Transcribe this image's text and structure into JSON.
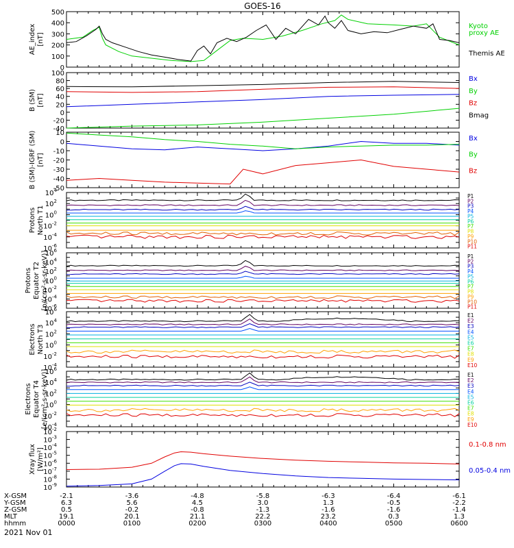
{
  "title": "GOES-16",
  "date_label": "2021 Nov 01",
  "colors": {
    "black": "#000000",
    "red": "#e00000",
    "green": "#00d000",
    "blue": "#0000e0",
    "p_levels": [
      "#000000",
      "#600060",
      "#0000c0",
      "#0050ff",
      "#00b0e0",
      "#00d0a0",
      "#40e000",
      "#e0e000",
      "#ffa000",
      "#e06000",
      "#e00000"
    ],
    "e_levels": [
      "#000000",
      "#600060",
      "#0000c0",
      "#0050ff",
      "#00b0e0",
      "#00d0a0",
      "#40e000",
      "#e0e000",
      "#ffa000",
      "#e00000"
    ]
  },
  "ephemeris": {
    "row_labels": [
      "X-GSM",
      "Y-GSM",
      "Z-GSM",
      "MLT",
      "hhmm"
    ],
    "columns": [
      [
        "-2.1",
        "6.3",
        "0.5",
        "19.1",
        "0000"
      ],
      [
        "-3.6",
        "5.6",
        "-0.2",
        "20.1",
        "0100"
      ],
      [
        "-4.8",
        "4.5",
        "-0.8",
        "21.1",
        "0200"
      ],
      [
        "-5.8",
        "3.0",
        "-1.3",
        "22.2",
        "0300"
      ],
      [
        "-6.3",
        "1.3",
        "-1.6",
        "23.2",
        "0400"
      ],
      [
        "-6.4",
        "-0.5",
        "-1.6",
        "0.3",
        "0500"
      ],
      [
        "-6.1",
        "-2.2",
        "-1.4",
        "1.3",
        "0600"
      ]
    ]
  },
  "chart_data": [
    {
      "type": "line",
      "panel": "ae",
      "ylabel": [
        "AE_index",
        "[nT]"
      ],
      "ylim": [
        0,
        500
      ],
      "yticks": [
        "0",
        "100",
        "200",
        "300",
        "400",
        "500"
      ],
      "x_hours": [
        0,
        6
      ],
      "legend": [
        {
          "text": "Kyoto",
          "color": "green"
        },
        {
          "text": "proxy AE",
          "color": "green"
        },
        {
          "text": "Themis AE",
          "color": "black"
        }
      ],
      "series": [
        {
          "name": "Kyoto proxy AE",
          "color": "green",
          "x": [
            0,
            0.25,
            0.4,
            0.5,
            0.55,
            0.6,
            0.8,
            1.0,
            1.3,
            1.6,
            1.9,
            2.1,
            2.3,
            2.5,
            2.7,
            3.0,
            3.3,
            3.6,
            3.9,
            4.1,
            4.2,
            4.3,
            4.6,
            5.0,
            5.3,
            5.5,
            5.7,
            6.0
          ],
          "y": [
            250,
            270,
            330,
            360,
            260,
            200,
            140,
            100,
            80,
            60,
            50,
            60,
            150,
            240,
            260,
            250,
            280,
            330,
            390,
            420,
            470,
            430,
            390,
            380,
            370,
            390,
            270,
            200
          ]
        },
        {
          "name": "Themis AE",
          "color": "black",
          "x": [
            0,
            0.15,
            0.3,
            0.45,
            0.5,
            0.55,
            0.6,
            0.7,
            0.9,
            1.1,
            1.3,
            1.5,
            1.7,
            1.9,
            2.0,
            2.1,
            2.2,
            2.3,
            2.45,
            2.6,
            2.75,
            2.9,
            3.05,
            3.2,
            3.35,
            3.5,
            3.7,
            3.85,
            3.95,
            4.0,
            4.1,
            4.2,
            4.3,
            4.5,
            4.7,
            4.9,
            5.1,
            5.3,
            5.5,
            5.6,
            5.7,
            5.85,
            6.0
          ],
          "y": [
            220,
            230,
            280,
            340,
            370,
            300,
            250,
            220,
            180,
            140,
            110,
            90,
            70,
            55,
            150,
            190,
            120,
            220,
            260,
            230,
            270,
            330,
            380,
            250,
            350,
            300,
            430,
            380,
            460,
            400,
            350,
            420,
            330,
            300,
            320,
            310,
            340,
            370,
            350,
            390,
            250,
            240,
            220
          ]
        }
      ]
    },
    {
      "type": "line",
      "panel": "b_sm",
      "ylabel": [
        "B (SM)",
        "[nT]"
      ],
      "ylim": [
        -40,
        100
      ],
      "yticks": [
        "-40",
        "-20",
        "0",
        "20",
        "40",
        "60",
        "80",
        "100"
      ],
      "legend": [
        {
          "text": "Bx",
          "color": "blue"
        },
        {
          "text": "By",
          "color": "green"
        },
        {
          "text": "Bz",
          "color": "red"
        },
        {
          "text": "Bmag",
          "color": "black"
        }
      ],
      "series": [
        {
          "name": "Bmag",
          "color": "black",
          "x": [
            0,
            1,
            2,
            3,
            4,
            5,
            6
          ],
          "y": [
            65,
            64,
            67,
            70,
            75,
            78,
            75
          ]
        },
        {
          "name": "Bz",
          "color": "red",
          "x": [
            0,
            1,
            2,
            3,
            4,
            5,
            6
          ],
          "y": [
            52,
            50,
            52,
            58,
            63,
            64,
            60
          ]
        },
        {
          "name": "Bx",
          "color": "blue",
          "x": [
            0,
            1,
            2,
            3,
            4,
            5,
            6
          ],
          "y": [
            14,
            20,
            26,
            32,
            40,
            43,
            45
          ]
        },
        {
          "name": "By",
          "color": "green",
          "x": [
            0,
            1,
            2,
            3,
            4,
            5,
            6
          ],
          "y": [
            -40,
            -35,
            -32,
            -25,
            -15,
            -5,
            10
          ]
        }
      ]
    },
    {
      "type": "line",
      "panel": "b_igrf",
      "ylabel": [
        "B (SM)-IGRF (SM)",
        "[nT]"
      ],
      "ylim": [
        -50,
        10
      ],
      "yticks": [
        "-50",
        "-40",
        "-30",
        "-20",
        "-10",
        "0",
        "10"
      ],
      "legend": [
        {
          "text": "Bx",
          "color": "blue"
        },
        {
          "text": "By",
          "color": "green"
        },
        {
          "text": "Bz",
          "color": "red"
        }
      ],
      "series": [
        {
          "name": "Bx",
          "color": "blue",
          "x": [
            0,
            0.5,
            1,
            1.5,
            2,
            2.5,
            3,
            3.5,
            4,
            4.5,
            5,
            5.5,
            6
          ],
          "y": [
            -2,
            -5,
            -8,
            -9,
            -6,
            -8,
            -10,
            -8,
            -5,
            0,
            -2,
            -2,
            -4
          ]
        },
        {
          "name": "By",
          "color": "green",
          "x": [
            0,
            0.5,
            1,
            1.5,
            2,
            2.5,
            3,
            3.5,
            4,
            4.5,
            5,
            5.5,
            6
          ],
          "y": [
            9,
            7,
            5,
            2,
            0,
            -3,
            -5,
            -8,
            -6,
            -5,
            -4,
            -4,
            -3
          ]
        },
        {
          "name": "Bz",
          "color": "red",
          "x": [
            0,
            0.5,
            1,
            1.5,
            2,
            2.5,
            2.7,
            3,
            3.5,
            4,
            4.5,
            5,
            5.5,
            6
          ],
          "y": [
            -42,
            -40,
            -42,
            -44,
            -45,
            -46,
            -30,
            -35,
            -26,
            -23,
            -20,
            -27,
            -30,
            -33
          ]
        }
      ]
    },
    {
      "type": "line",
      "panel": "p_north",
      "log": true,
      "ylabel": [
        "Protons",
        "North T1"
      ],
      "ylim_exp": [
        -6,
        4
      ],
      "legend": [
        "P1",
        "P2",
        "P3",
        "P4",
        "P5",
        "P6",
        "P7",
        "P8",
        "P9",
        "P10",
        "P11"
      ],
      "series_levels_exp": [
        2.6,
        1.7,
        0.9,
        0.3,
        -0.3,
        -0.9,
        -1.5,
        -2.0,
        -2.8,
        -3.4,
        -4.0
      ],
      "spike_hour": 2.75
    },
    {
      "type": "line",
      "panel": "p_equator",
      "log": true,
      "ylabel": [
        "Protons",
        "Equator T2",
        "[p/(cm²-s-sr-keV)]"
      ],
      "ylim_exp": [
        -6,
        6
      ],
      "legend": [
        "P1",
        "P2",
        "P3",
        "P4",
        "P5",
        "P6",
        "P7",
        "P8",
        "P9",
        "P10",
        "P11"
      ],
      "series_levels_exp": [
        3.2,
        2.2,
        1.4,
        0.5,
        -0.1,
        -0.6,
        -1.3,
        -2.0,
        -2.8,
        -3.6,
        -4.4
      ],
      "spike_hour": 2.75
    },
    {
      "type": "line",
      "panel": "e_north",
      "log": true,
      "ylabel": [
        "Electrons",
        "North T3"
      ],
      "ylim_exp": [
        -4,
        6
      ],
      "legend": [
        "E1",
        "E2",
        "E3",
        "E4",
        "E5",
        "E6",
        "E7",
        "E8",
        "E9",
        "E10"
      ],
      "series_levels_exp": [
        4.3,
        3.7,
        3.2,
        2.5,
        1.8,
        1.1,
        0.4,
        -0.3,
        -1.2,
        -2.1
      ],
      "spike_hour": 2.8
    },
    {
      "type": "line",
      "panel": "e_equator",
      "log": true,
      "ylabel": [
        "Electrons",
        "Equator T4",
        "[e/(cm²-s-sr-keV)]"
      ],
      "ylim_exp": [
        -4,
        6
      ],
      "legend": [
        "E1",
        "E2",
        "E3",
        "E4",
        "E5",
        "E6",
        "E7",
        "E8",
        "E9",
        "E10"
      ],
      "series_levels_exp": [
        4.5,
        4.0,
        3.4,
        2.7,
        2.0,
        1.3,
        0.6,
        -0.1,
        -1.0,
        -1.9
      ],
      "spike_hour": 2.8
    },
    {
      "type": "line",
      "panel": "xray",
      "log": true,
      "ylabel": [
        "Xray flux",
        "[W/m²]"
      ],
      "ylim_exp": [
        -9,
        -2
      ],
      "legend": [
        {
          "text": "0.1-0.8 nm",
          "color": "red"
        },
        {
          "text": "0.05-0.4 nm",
          "color": "blue"
        }
      ],
      "series": [
        {
          "name": "0.1-0.8 nm",
          "color": "red",
          "x": [
            0,
            0.5,
            1.0,
            1.3,
            1.5,
            1.65,
            1.75,
            1.9,
            2.1,
            2.5,
            3.0,
            3.5,
            4.0,
            4.5,
            5.0,
            5.5,
            6.0
          ],
          "y_exp": [
            -6.8,
            -6.75,
            -6.5,
            -6.0,
            -5.2,
            -4.7,
            -4.55,
            -4.6,
            -4.8,
            -5.1,
            -5.4,
            -5.6,
            -5.75,
            -5.85,
            -5.95,
            -6.0,
            -6.1
          ]
        },
        {
          "name": "0.05-0.4 nm",
          "color": "blue",
          "x": [
            0,
            0.5,
            1.0,
            1.3,
            1.5,
            1.65,
            1.75,
            1.9,
            2.1,
            2.5,
            3.0,
            3.5,
            4.0,
            4.5,
            5.0,
            5.5,
            6.0
          ],
          "y_exp": [
            -8.9,
            -8.8,
            -8.6,
            -8.0,
            -7.0,
            -6.3,
            -6.05,
            -6.1,
            -6.4,
            -6.9,
            -7.3,
            -7.6,
            -7.8,
            -7.9,
            -8.0,
            -8.05,
            -8.1
          ]
        }
      ]
    }
  ]
}
